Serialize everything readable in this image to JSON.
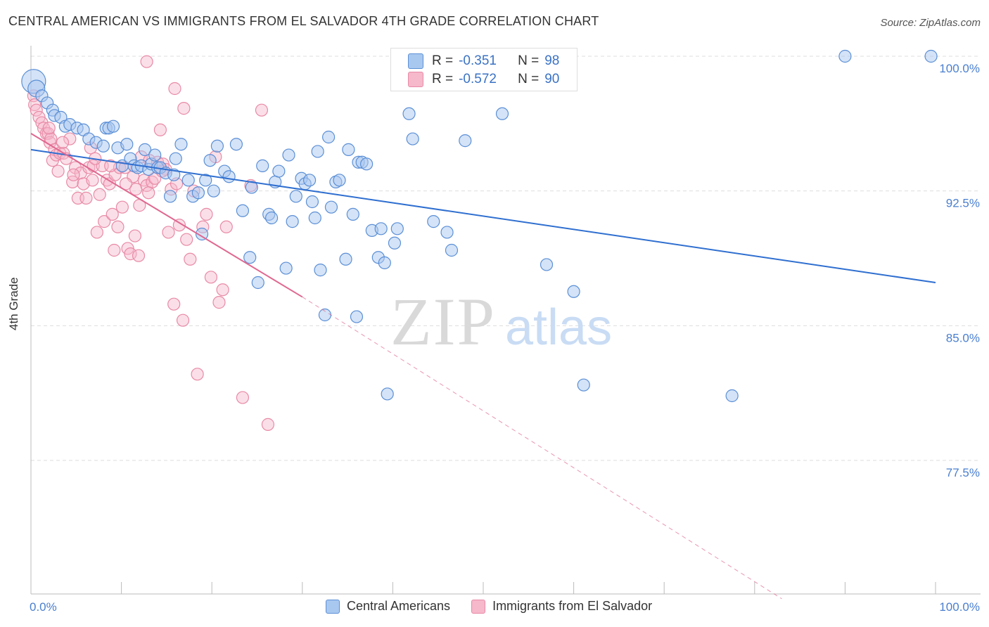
{
  "header": {
    "title": "CENTRAL AMERICAN VS IMMIGRANTS FROM EL SALVADOR 4TH GRADE CORRELATION CHART",
    "source": "Source: ZipAtlas.com"
  },
  "watermark": {
    "zip": "ZIP",
    "atlas": "atlas"
  },
  "stats": {
    "blue": {
      "r_label": "R =",
      "r_value": "-0.351",
      "n_label": "N =",
      "n_value": "98"
    },
    "pink": {
      "r_label": "R =",
      "r_value": "-0.572",
      "n_label": "N =",
      "n_value": "90"
    }
  },
  "colors": {
    "blue_fill": "#a9c8ef",
    "blue_stroke": "#5b8fd6",
    "blue_line": "#2f6fd0",
    "pink_fill": "#f6b8cb",
    "pink_stroke": "#e88aa6",
    "pink_line": "#e06890",
    "grid": "#dddddd",
    "tick_label": "#4a7fcf"
  },
  "chart_data": {
    "type": "scatter",
    "title": "CENTRAL AMERICAN VS IMMIGRANTS FROM EL SALVADOR 4TH GRADE CORRELATION CHART",
    "xlabel": "",
    "ylabel": "4th Grade",
    "xlim": [
      0,
      100
    ],
    "ylim": [
      70,
      100.5
    ],
    "x_tick_labels": [
      "0.0%",
      "100.0%"
    ],
    "y_ticks": [
      77.5,
      85.0,
      92.5,
      100.0
    ],
    "y_tick_labels": [
      "77.5%",
      "85.0%",
      "92.5%",
      "100.0%"
    ],
    "grid": true,
    "legend": "bottom-center",
    "series": [
      {
        "name": "Central Americans",
        "color": "#5b8fd6",
        "trend": {
          "x": [
            0,
            100
          ],
          "y": [
            94.8,
            87.4
          ]
        },
        "points": [
          [
            0.3,
            98.6
          ],
          [
            0.6,
            98.2
          ],
          [
            1.2,
            97.8
          ],
          [
            1.8,
            97.4
          ],
          [
            2.4,
            97.0
          ],
          [
            2.6,
            96.7
          ],
          [
            3.3,
            96.6
          ],
          [
            3.8,
            96.1
          ],
          [
            4.3,
            96.2
          ],
          [
            5.1,
            96.0
          ],
          [
            5.8,
            95.9
          ],
          [
            6.4,
            95.4
          ],
          [
            7.2,
            95.2
          ],
          [
            8.0,
            95.0
          ],
          [
            8.3,
            96.0
          ],
          [
            8.6,
            96.0
          ],
          [
            9.1,
            96.1
          ],
          [
            9.6,
            94.9
          ],
          [
            10.1,
            93.9
          ],
          [
            10.6,
            95.1
          ],
          [
            11.0,
            94.3
          ],
          [
            11.4,
            93.9
          ],
          [
            11.8,
            93.8
          ],
          [
            12.2,
            93.9
          ],
          [
            12.6,
            94.8
          ],
          [
            13.0,
            93.7
          ],
          [
            13.3,
            94.0
          ],
          [
            13.7,
            94.5
          ],
          [
            14.0,
            93.8
          ],
          [
            14.3,
            93.8
          ],
          [
            14.9,
            93.5
          ],
          [
            15.4,
            92.2
          ],
          [
            15.8,
            93.4
          ],
          [
            16.0,
            94.3
          ],
          [
            16.6,
            95.1
          ],
          [
            17.4,
            93.1
          ],
          [
            17.9,
            92.2
          ],
          [
            18.5,
            92.4
          ],
          [
            18.9,
            90.1
          ],
          [
            19.3,
            93.1
          ],
          [
            19.8,
            94.2
          ],
          [
            20.2,
            92.5
          ],
          [
            20.6,
            95.0
          ],
          [
            21.4,
            93.6
          ],
          [
            21.9,
            93.3
          ],
          [
            22.7,
            95.1
          ],
          [
            23.4,
            91.4
          ],
          [
            24.2,
            88.8
          ],
          [
            24.4,
            92.7
          ],
          [
            25.1,
            87.4
          ],
          [
            25.6,
            93.9
          ],
          [
            26.3,
            91.2
          ],
          [
            26.6,
            91.0
          ],
          [
            27.0,
            93.0
          ],
          [
            27.4,
            93.6
          ],
          [
            28.2,
            88.2
          ],
          [
            28.5,
            94.5
          ],
          [
            28.9,
            90.8
          ],
          [
            29.3,
            92.2
          ],
          [
            29.9,
            93.2
          ],
          [
            30.3,
            92.9
          ],
          [
            30.8,
            93.1
          ],
          [
            31.1,
            91.9
          ],
          [
            31.4,
            91.0
          ],
          [
            31.7,
            94.7
          ],
          [
            32.0,
            88.1
          ],
          [
            32.5,
            85.6
          ],
          [
            32.9,
            95.5
          ],
          [
            33.2,
            91.6
          ],
          [
            33.7,
            93.0
          ],
          [
            34.1,
            93.1
          ],
          [
            34.8,
            88.7
          ],
          [
            35.1,
            94.8
          ],
          [
            35.6,
            91.2
          ],
          [
            36.0,
            85.5
          ],
          [
            36.2,
            94.1
          ],
          [
            36.6,
            94.1
          ],
          [
            37.1,
            94.0
          ],
          [
            37.7,
            90.3
          ],
          [
            38.4,
            88.8
          ],
          [
            38.7,
            90.4
          ],
          [
            39.1,
            88.5
          ],
          [
            39.4,
            81.2
          ],
          [
            40.2,
            89.6
          ],
          [
            40.5,
            90.4
          ],
          [
            41.8,
            96.8
          ],
          [
            42.2,
            95.4
          ],
          [
            44.5,
            90.8
          ],
          [
            46.0,
            90.2
          ],
          [
            46.5,
            89.2
          ],
          [
            48.0,
            95.3
          ],
          [
            52.1,
            96.8
          ],
          [
            57.0,
            88.4
          ],
          [
            60.0,
            86.9
          ],
          [
            61.1,
            81.7
          ],
          [
            77.5,
            81.1
          ],
          [
            90.0,
            100.0
          ],
          [
            99.5,
            100.0
          ]
        ]
      },
      {
        "name": "Immigrants from El Salvador",
        "color": "#e88aa6",
        "trend": {
          "x": [
            0,
            30
          ],
          "y": [
            95.7,
            86.6
          ]
        },
        "trend_dashed": {
          "x": [
            30,
            83
          ],
          "y": [
            86.6,
            69.8
          ]
        },
        "points": [
          [
            0.3,
            97.8
          ],
          [
            0.4,
            97.3
          ],
          [
            0.6,
            97.0
          ],
          [
            0.9,
            96.6
          ],
          [
            1.2,
            96.3
          ],
          [
            1.4,
            96.0
          ],
          [
            1.7,
            95.7
          ],
          [
            1.9,
            95.7
          ],
          [
            2.1,
            95.2
          ],
          [
            2.2,
            95.4
          ],
          [
            2.4,
            94.2
          ],
          [
            2.6,
            94.8
          ],
          [
            2.8,
            94.5
          ],
          [
            3.0,
            93.6
          ],
          [
            3.2,
            94.6
          ],
          [
            3.6,
            94.6
          ],
          [
            3.9,
            94.3
          ],
          [
            4.3,
            95.4
          ],
          [
            4.6,
            93.0
          ],
          [
            4.9,
            93.8
          ],
          [
            5.2,
            92.1
          ],
          [
            5.5,
            93.5
          ],
          [
            5.8,
            92.9
          ],
          [
            6.1,
            92.1
          ],
          [
            6.4,
            93.8
          ],
          [
            6.6,
            94.9
          ],
          [
            6.9,
            93.9
          ],
          [
            7.3,
            90.2
          ],
          [
            7.6,
            92.3
          ],
          [
            7.9,
            93.9
          ],
          [
            8.1,
            90.8
          ],
          [
            8.4,
            93.1
          ],
          [
            8.7,
            92.9
          ],
          [
            9.0,
            91.2
          ],
          [
            9.3,
            93.4
          ],
          [
            9.6,
            90.5
          ],
          [
            9.8,
            93.8
          ],
          [
            10.1,
            91.6
          ],
          [
            10.4,
            93.8
          ],
          [
            10.7,
            89.3
          ],
          [
            11.0,
            89.0
          ],
          [
            11.3,
            93.3
          ],
          [
            11.6,
            92.6
          ],
          [
            11.9,
            88.9
          ],
          [
            12.2,
            94.4
          ],
          [
            12.5,
            93.1
          ],
          [
            12.8,
            92.8
          ],
          [
            13.1,
            94.2
          ],
          [
            13.4,
            93.0
          ],
          [
            13.7,
            93.2
          ],
          [
            14.0,
            94.1
          ],
          [
            14.3,
            95.9
          ],
          [
            14.6,
            94.0
          ],
          [
            14.9,
            93.7
          ],
          [
            15.2,
            90.2
          ],
          [
            15.5,
            92.6
          ],
          [
            15.8,
            86.2
          ],
          [
            16.1,
            92.9
          ],
          [
            16.4,
            90.6
          ],
          [
            16.8,
            85.3
          ],
          [
            17.2,
            89.8
          ],
          [
            17.6,
            88.7
          ],
          [
            18.0,
            92.5
          ],
          [
            18.4,
            82.3
          ],
          [
            19.0,
            90.5
          ],
          [
            19.4,
            91.2
          ],
          [
            19.9,
            87.7
          ],
          [
            20.4,
            94.4
          ],
          [
            20.8,
            86.3
          ],
          [
            21.2,
            87.0
          ],
          [
            21.6,
            90.5
          ],
          [
            23.4,
            81.0
          ],
          [
            24.3,
            92.8
          ],
          [
            25.5,
            97.0
          ],
          [
            26.2,
            79.5
          ],
          [
            12.8,
            99.7
          ],
          [
            15.9,
            98.2
          ],
          [
            16.9,
            97.1
          ],
          [
            2.0,
            96.0
          ],
          [
            3.5,
            95.2
          ],
          [
            4.7,
            93.4
          ],
          [
            6.8,
            93.1
          ],
          [
            8.8,
            93.9
          ],
          [
            10.5,
            92.9
          ],
          [
            12.0,
            91.7
          ],
          [
            13.0,
            92.4
          ],
          [
            14.5,
            93.6
          ],
          [
            9.2,
            89.2
          ],
          [
            11.5,
            90.0
          ],
          [
            7.1,
            94.3
          ]
        ]
      }
    ]
  },
  "legend": {
    "items": [
      {
        "label": "Central Americans"
      },
      {
        "label": "Immigrants from El Salvador"
      }
    ]
  }
}
